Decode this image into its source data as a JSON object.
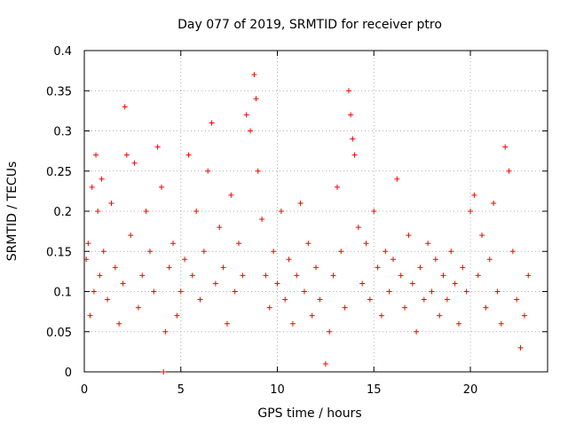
{
  "chart_data": {
    "type": "scatter",
    "title": "Day 077 of 2019, SRMTID for receiver ptro",
    "xlabel": "GPS time / hours",
    "ylabel": "SRMTID / TECUs",
    "xlim": [
      0,
      24
    ],
    "ylim": [
      0,
      0.4
    ],
    "x_ticks": [
      0,
      5,
      10,
      15,
      20
    ],
    "x_tick_labels": [
      "0",
      "5",
      "10",
      "15",
      "20"
    ],
    "y_ticks": [
      0,
      0.05,
      0.1,
      0.15,
      0.2,
      0.25,
      0.3,
      0.35,
      0.4
    ],
    "y_tick_labels": [
      "0",
      "0.05",
      "0.1",
      "0.15",
      "0.2",
      "0.25",
      "0.3",
      "0.35",
      "0.4"
    ],
    "grid": true,
    "marker": "+",
    "marker_color": "#ff0000",
    "grid_color": "#b0b0b0",
    "series": [
      {
        "name": "SRMTID",
        "points": [
          [
            0.1,
            0.14
          ],
          [
            0.2,
            0.16
          ],
          [
            0.3,
            0.07
          ],
          [
            0.4,
            0.23
          ],
          [
            0.5,
            0.1
          ],
          [
            0.6,
            0.27
          ],
          [
            0.7,
            0.2
          ],
          [
            0.8,
            0.12
          ],
          [
            0.9,
            0.24
          ],
          [
            1.0,
            0.15
          ],
          [
            1.2,
            0.09
          ],
          [
            1.4,
            0.21
          ],
          [
            1.6,
            0.13
          ],
          [
            1.8,
            0.06
          ],
          [
            2.0,
            0.11
          ],
          [
            2.1,
            0.33
          ],
          [
            2.2,
            0.27
          ],
          [
            2.4,
            0.17
          ],
          [
            2.6,
            0.26
          ],
          [
            2.8,
            0.08
          ],
          [
            3.0,
            0.12
          ],
          [
            3.2,
            0.2
          ],
          [
            3.4,
            0.15
          ],
          [
            3.6,
            0.1
          ],
          [
            3.8,
            0.28
          ],
          [
            4.0,
            0.23
          ],
          [
            4.1,
            0.0
          ],
          [
            4.2,
            0.05
          ],
          [
            4.4,
            0.13
          ],
          [
            4.6,
            0.16
          ],
          [
            4.8,
            0.07
          ],
          [
            5.0,
            0.1
          ],
          [
            5.2,
            0.14
          ],
          [
            5.4,
            0.27
          ],
          [
            5.6,
            0.12
          ],
          [
            5.8,
            0.2
          ],
          [
            6.0,
            0.09
          ],
          [
            6.2,
            0.15
          ],
          [
            6.4,
            0.25
          ],
          [
            6.6,
            0.31
          ],
          [
            6.8,
            0.11
          ],
          [
            7.0,
            0.18
          ],
          [
            7.2,
            0.13
          ],
          [
            7.4,
            0.06
          ],
          [
            7.6,
            0.22
          ],
          [
            7.8,
            0.1
          ],
          [
            8.0,
            0.16
          ],
          [
            8.2,
            0.12
          ],
          [
            8.4,
            0.32
          ],
          [
            8.6,
            0.3
          ],
          [
            8.8,
            0.37
          ],
          [
            8.9,
            0.34
          ],
          [
            9.0,
            0.25
          ],
          [
            9.2,
            0.19
          ],
          [
            9.4,
            0.12
          ],
          [
            9.6,
            0.08
          ],
          [
            9.8,
            0.15
          ],
          [
            10.0,
            0.11
          ],
          [
            10.2,
            0.2
          ],
          [
            10.4,
            0.09
          ],
          [
            10.6,
            0.14
          ],
          [
            10.8,
            0.06
          ],
          [
            11.0,
            0.12
          ],
          [
            11.2,
            0.21
          ],
          [
            11.4,
            0.1
          ],
          [
            11.6,
            0.16
          ],
          [
            11.8,
            0.07
          ],
          [
            12.0,
            0.13
          ],
          [
            12.2,
            0.09
          ],
          [
            12.5,
            0.01
          ],
          [
            12.7,
            0.05
          ],
          [
            12.9,
            0.12
          ],
          [
            13.1,
            0.23
          ],
          [
            13.3,
            0.15
          ],
          [
            13.5,
            0.08
          ],
          [
            13.7,
            0.35
          ],
          [
            13.8,
            0.32
          ],
          [
            13.9,
            0.29
          ],
          [
            14.0,
            0.27
          ],
          [
            14.2,
            0.18
          ],
          [
            14.4,
            0.11
          ],
          [
            14.6,
            0.16
          ],
          [
            14.8,
            0.09
          ],
          [
            15.0,
            0.2
          ],
          [
            15.2,
            0.13
          ],
          [
            15.4,
            0.07
          ],
          [
            15.6,
            0.15
          ],
          [
            15.8,
            0.1
          ],
          [
            16.0,
            0.14
          ],
          [
            16.2,
            0.24
          ],
          [
            16.4,
            0.12
          ],
          [
            16.6,
            0.08
          ],
          [
            16.8,
            0.17
          ],
          [
            17.0,
            0.11
          ],
          [
            17.2,
            0.05
          ],
          [
            17.4,
            0.13
          ],
          [
            17.6,
            0.09
          ],
          [
            17.8,
            0.16
          ],
          [
            18.0,
            0.1
          ],
          [
            18.2,
            0.14
          ],
          [
            18.4,
            0.07
          ],
          [
            18.6,
            0.12
          ],
          [
            18.8,
            0.09
          ],
          [
            19.0,
            0.15
          ],
          [
            19.2,
            0.11
          ],
          [
            19.4,
            0.06
          ],
          [
            19.6,
            0.13
          ],
          [
            19.8,
            0.1
          ],
          [
            20.0,
            0.2
          ],
          [
            20.2,
            0.22
          ],
          [
            20.4,
            0.12
          ],
          [
            20.6,
            0.17
          ],
          [
            20.8,
            0.08
          ],
          [
            21.0,
            0.14
          ],
          [
            21.2,
            0.21
          ],
          [
            21.4,
            0.1
          ],
          [
            21.6,
            0.06
          ],
          [
            21.8,
            0.28
          ],
          [
            22.0,
            0.25
          ],
          [
            22.2,
            0.15
          ],
          [
            22.4,
            0.09
          ],
          [
            22.6,
            0.03
          ],
          [
            22.8,
            0.07
          ],
          [
            23.0,
            0.12
          ]
        ]
      }
    ]
  }
}
